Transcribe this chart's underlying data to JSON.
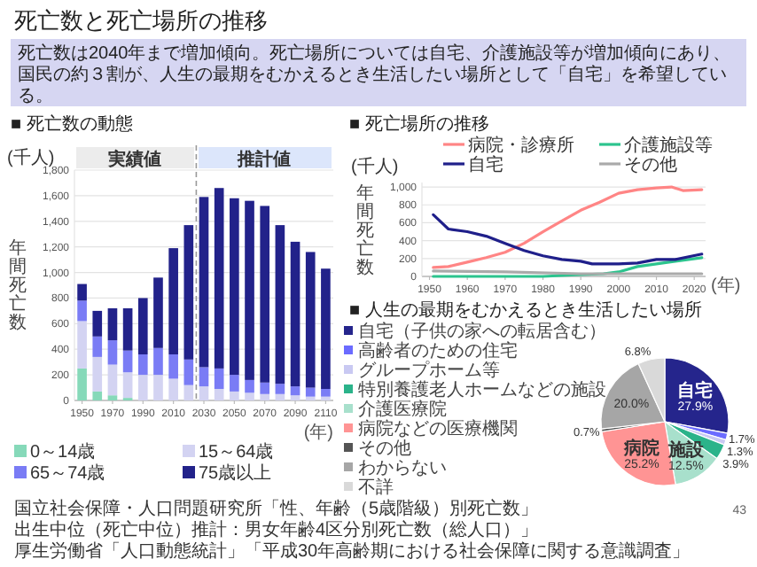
{
  "chart_data": [
    {
      "type": "other",
      "title": "死亡数と死亡場所の推移",
      "subtitle": "死亡数は2040年まで増加傾向。死亡場所については自宅、介護施設等が増加傾向にあり、国民の約３割が、人生の最期をむかえるとき生活したい場所として「自宅」を希望している。",
      "annotations": [
        "43"
      ]
    },
    {
      "type": "bar",
      "stacked": true,
      "title": "■ 死亡数の動態",
      "xlabel": "(年)",
      "ylabel": "年間死亡数",
      "x": [
        1950,
        1960,
        1970,
        1980,
        1990,
        2000,
        2010,
        2020,
        2030,
        2040,
        2050,
        2060,
        2070,
        2080,
        2090,
        2100,
        2110
      ],
      "xlim": [
        1945,
        2115
      ],
      "xticks": [
        1950,
        1970,
        1990,
        2010,
        2030,
        2050,
        2070,
        2090,
        2110
      ],
      "ylim": [
        0,
        1800
      ],
      "yticks": [
        0,
        200,
        400,
        600,
        800,
        {
          "value": 1000,
          "label": "1,000"
        },
        {
          "value": 1200,
          "label": "1,200"
        },
        {
          "value": 1400,
          "label": "1,400"
        },
        {
          "value": 1600,
          "label": "1,600"
        },
        {
          "value": 1800,
          "label": "1,800"
        }
      ],
      "grid": "y",
      "legend": "bottom",
      "ref_lines": [
        {
          "axis": "x",
          "value": 2025,
          "line_style": "dashed",
          "color": "#999999"
        }
      ],
      "series": [
        {
          "name": "0～14歳",
          "color": "#86d9b9",
          "values": [
            250,
            70,
            40,
            20,
            null,
            null,
            0,
            0,
            0,
            0,
            0,
            0,
            0,
            0,
            0,
            0,
            0
          ]
        },
        {
          "name": "15～64歳",
          "color": "#d3d3f2",
          "values": [
            370,
            270,
            240,
            200,
            200,
            200,
            170,
            120,
            110,
            90,
            70,
            60,
            50,
            50,
            40,
            30,
            30
          ]
        },
        {
          "name": "65～74歳",
          "color": "#7a7cf5",
          "values": [
            160,
            160,
            190,
            170,
            160,
            210,
            190,
            200,
            150,
            160,
            130,
            100,
            90,
            80,
            70,
            70,
            60
          ]
        },
        {
          "name": "75歳以上",
          "color": "#22228a",
          "values": [
            130,
            200,
            250,
            330,
            440,
            550,
            830,
            1050,
            1330,
            1410,
            1380,
            1400,
            1380,
            1240,
            1130,
            1060,
            940
          ]
        }
      ],
      "annotations": [
        "(千人)",
        "実績値",
        "推計値",
        "国立社会保障・人口問題研究所「性、年齢（5歳階級）別死亡数」",
        "出生中位（死亡中位）推計：男女年齢4区分別死亡数（総人口）」",
        "厚生労働省「人口動態統計」「平成30年高齢期における社会保障に関する意識調査」"
      ]
    },
    {
      "type": "line",
      "title": "■ 死亡場所の推移",
      "xlabel": "(年)",
      "ylabel": "年間死亡数",
      "xlim": [
        1948,
        2023
      ],
      "xticks": [
        1950,
        1960,
        1970,
        1980,
        1990,
        2000,
        2010,
        2020
      ],
      "ylim": [
        0,
        1050
      ],
      "yticks": [
        0,
        200,
        400,
        600,
        800,
        {
          "value": 1000,
          "label": "1,000"
        }
      ],
      "grid": "y",
      "legend": "top",
      "series": [
        {
          "name": "病院・診療所",
          "color": "#ff8585",
          "x": [
            1951,
            1955,
            1960,
            1965,
            1970,
            1975,
            1980,
            1985,
            1990,
            1995,
            2000,
            2005,
            2010,
            2014,
            2017,
            2022
          ],
          "values": [
            100,
            110,
            160,
            210,
            270,
            370,
            500,
            620,
            740,
            830,
            930,
            970,
            990,
            1000,
            960,
            970
          ]
        },
        {
          "name": "介護施設等",
          "color": "#2cc48e",
          "x": [
            1951,
            1980,
            1990,
            1996,
            2000,
            2005,
            2010,
            2015,
            2022
          ],
          "values": [
            0,
            0,
            20,
            30,
            50,
            110,
            140,
            170,
            210
          ]
        },
        {
          "name": "自宅",
          "color": "#1f1f8a",
          "x": [
            1951,
            1955,
            1960,
            1965,
            1970,
            1975,
            1980,
            1985,
            1990,
            1993,
            2000,
            2005,
            2010,
            2015,
            2022
          ],
          "values": [
            690,
            530,
            500,
            450,
            370,
            290,
            230,
            190,
            170,
            140,
            140,
            150,
            190,
            190,
            250
          ]
        },
        {
          "name": "その他",
          "color": "#aaaaaa",
          "x": [
            1951,
            1970,
            1990,
            2022
          ],
          "values": [
            60,
            50,
            30,
            30
          ]
        }
      ],
      "annotations": [
        "(千人)"
      ]
    },
    {
      "type": "pie",
      "title": "■ 人生の最期をむかえるとき生活したい場所",
      "legend": "left",
      "categories": [
        "自宅（子供の家への転居含む）",
        "高齢者のための住宅",
        "グループホーム等",
        "特別養護老人ホームなどの施設",
        "介護医療院",
        "病院などの医療機関",
        "その他",
        "わからない",
        "不詳"
      ],
      "values": [
        27.9,
        1.7,
        1.3,
        3.9,
        12.5,
        25.2,
        0.7,
        20.0,
        6.8
      ],
      "colors": [
        "#25258c",
        "#6b6bff",
        "#c9c9f2",
        "#2bb38a",
        "#a8e0cc",
        "#ff9494",
        "#555555",
        "#a6a6a6",
        "#d9d9d9"
      ],
      "value_labels": [
        "27.9%",
        "1.7%",
        "1.3%",
        "3.9%",
        "12.5%",
        "25.2%",
        "0.7%",
        "20.0%",
        "6.8%"
      ],
      "annotations": [
        {
          "text": "自宅",
          "x": "自宅（子供の家への転居含む）"
        },
        {
          "text": "病院",
          "x": "病院などの医療機関"
        },
        {
          "text": "施設",
          "x": "介護医療院"
        }
      ]
    }
  ]
}
